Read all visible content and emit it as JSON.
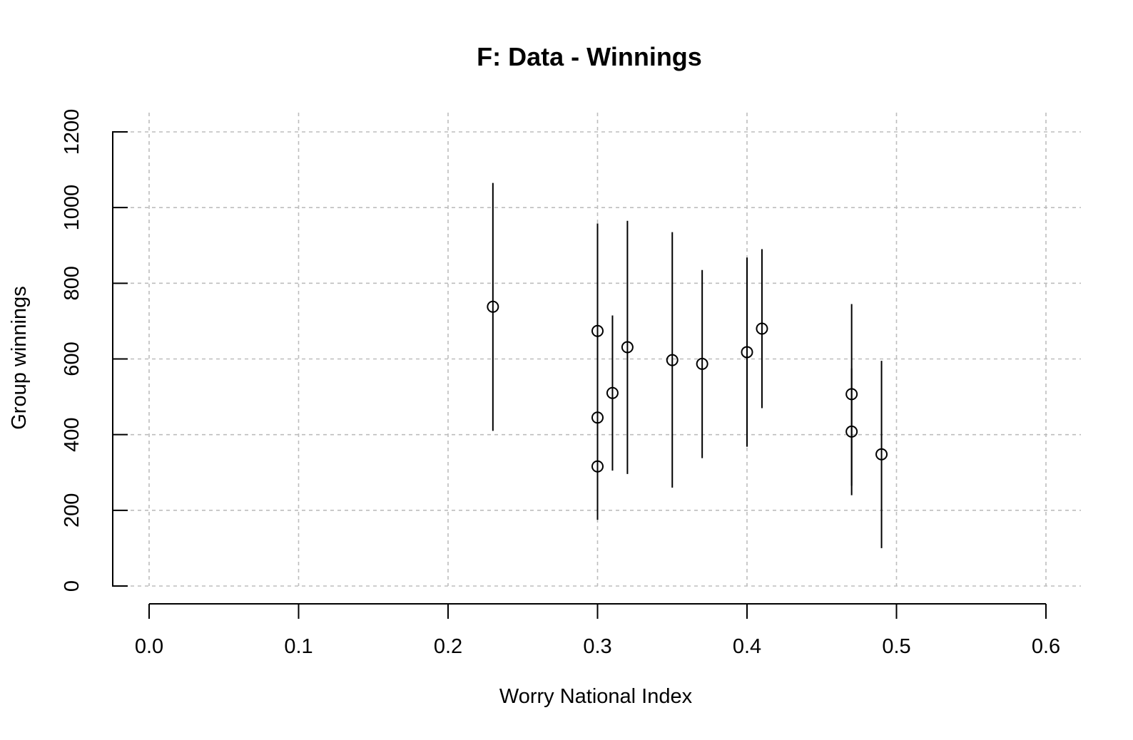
{
  "chart_data": {
    "type": "scatter",
    "title": "F: Data - Winnings",
    "xlabel": "Worry National Index",
    "ylabel": "Group winnings",
    "xlim": [
      0.0,
      0.6
    ],
    "ylim": [
      0,
      1200
    ],
    "x_ticks": [
      0.0,
      0.1,
      0.2,
      0.3,
      0.4,
      0.5,
      0.6
    ],
    "x_tick_labels": [
      "0.0",
      "0.1",
      "0.2",
      "0.3",
      "0.4",
      "0.5",
      "0.6"
    ],
    "y_ticks": [
      0,
      200,
      400,
      600,
      800,
      1000,
      1200
    ],
    "y_tick_labels": [
      "0",
      "200",
      "400",
      "600",
      "800",
      "1000",
      "1200"
    ],
    "grid": true,
    "points": [
      {
        "x": 0.23,
        "y": 738,
        "low": 410,
        "high": 1065
      },
      {
        "x": 0.3,
        "y": 674,
        "low": 390,
        "high": 958
      },
      {
        "x": 0.3,
        "y": 445,
        "low": 200,
        "high": 690
      },
      {
        "x": 0.3,
        "y": 316,
        "low": 175,
        "high": 460
      },
      {
        "x": 0.31,
        "y": 510,
        "low": 305,
        "high": 715
      },
      {
        "x": 0.32,
        "y": 631,
        "low": 296,
        "high": 965
      },
      {
        "x": 0.35,
        "y": 597,
        "low": 260,
        "high": 935
      },
      {
        "x": 0.37,
        "y": 587,
        "low": 338,
        "high": 835
      },
      {
        "x": 0.4,
        "y": 618,
        "low": 368,
        "high": 868
      },
      {
        "x": 0.41,
        "y": 680,
        "low": 470,
        "high": 890
      },
      {
        "x": 0.47,
        "y": 507,
        "low": 265,
        "high": 745
      },
      {
        "x": 0.47,
        "y": 408,
        "low": 240,
        "high": 575
      },
      {
        "x": 0.49,
        "y": 348,
        "low": 100,
        "high": 595
      }
    ]
  }
}
